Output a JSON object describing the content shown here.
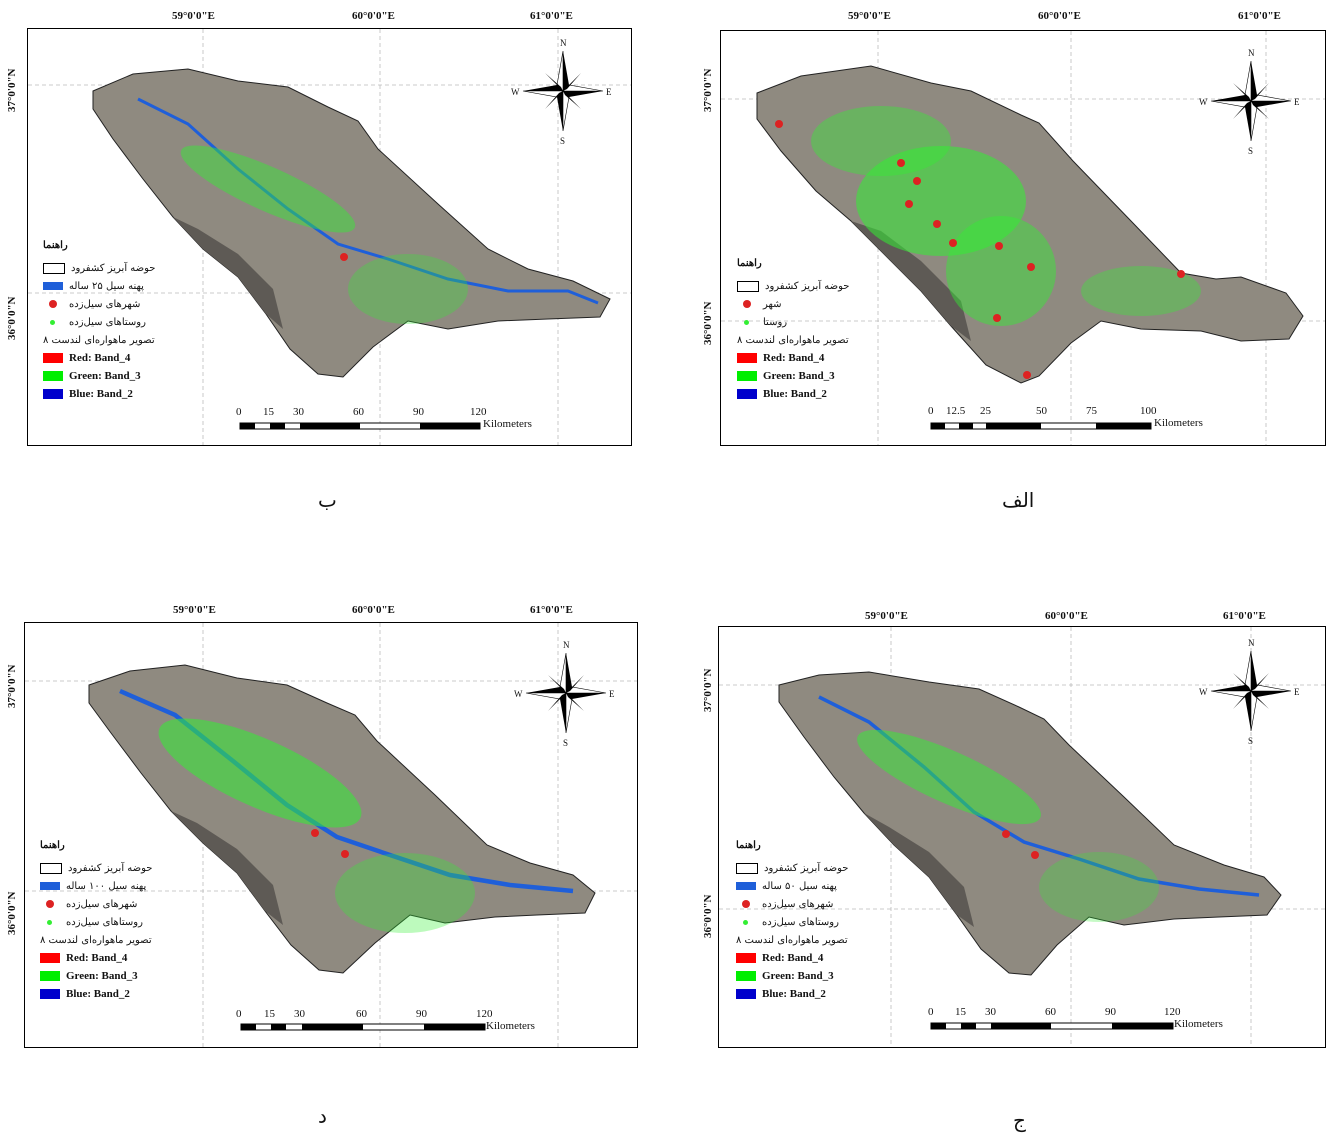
{
  "colors": {
    "basin_fill": "#8f8a80",
    "basin_dark": "#5e5a55",
    "village_green": "#33ee33",
    "city_red": "#dd2222",
    "flood_blue": "#1f5fd9",
    "band_red": "#ff0000",
    "band_green": "#00ee00",
    "band_blue": "#0000cc"
  },
  "coord_labels": {
    "lon": [
      "59°0'0\"E",
      "60°0'0\"E",
      "61°0'0\"E"
    ],
    "lat": [
      "37°0'0\"N",
      "36°0'0\"N"
    ]
  },
  "compass": {
    "n": "N",
    "s": "S",
    "e": "E",
    "w": "W"
  },
  "panels": [
    {
      "caption": "الف",
      "legend": {
        "title": "راهنما",
        "basin": "حوضه آبریز کشفرود",
        "city": "شهر",
        "village": "روستا",
        "image": "تصویر ماهواره‌ای لندست ۸",
        "red": "Red:    Band_4",
        "green": "Green: Band_3",
        "blue": "Blue:   Band_2"
      },
      "scale": {
        "ticks": [
          "0",
          "12.5",
          "25",
          "50",
          "75",
          "100"
        ],
        "unit": "Kilometers"
      },
      "icons": [
        "north-arrow-icon"
      ]
    },
    {
      "caption": "ب",
      "legend": {
        "title": "راهنما",
        "basin": "حوضه آبریز کشفرود",
        "flood": "پهنه سیل ۲۵ ساله",
        "city": "شهرهای سیل‌زده",
        "village": "روستاهای سیل‌زده",
        "image": "تصویر ماهواره‌ای لندست ۸",
        "red": "Red:    Band_4",
        "green": "Green: Band_3",
        "blue": "Blue:   Band_2"
      },
      "scale": {
        "ticks": [
          "0",
          "15",
          "30",
          "60",
          "90",
          "120"
        ],
        "unit": "Kilometers"
      }
    },
    {
      "caption": "ج",
      "legend": {
        "title": "راهنما",
        "basin": "حوضه آبریز کشفرود",
        "flood": "پهنه سیل ۵۰ ساله",
        "city": "شهرهای سیل‌زده",
        "village": "روستاهای سیل‌زده",
        "image": "تصویر ماهواره‌ای لندست ۸",
        "red": "Red:    Band_4",
        "green": "Green: Band_3",
        "blue": "Blue:   Band_2"
      },
      "scale": {
        "ticks": [
          "0",
          "15",
          "30",
          "60",
          "90",
          "120"
        ],
        "unit": "Kilometers"
      }
    },
    {
      "caption": "د",
      "legend": {
        "title": "راهنما",
        "basin": "حوضه آبریز کشفرود",
        "flood": "پهنه سیل ۱۰۰ ساله",
        "city": "شهرهای سیل‌زده",
        "village": "روستاهای سیل‌زده",
        "image": "تصویر ماهواره‌ای لندست ۸",
        "red": "Red:    Band_4",
        "green": "Green: Band_3",
        "blue": "Blue:   Band_2"
      },
      "scale": {
        "ticks": [
          "0",
          "15",
          "30",
          "60",
          "90",
          "120"
        ],
        "unit": "Kilometers"
      }
    }
  ]
}
